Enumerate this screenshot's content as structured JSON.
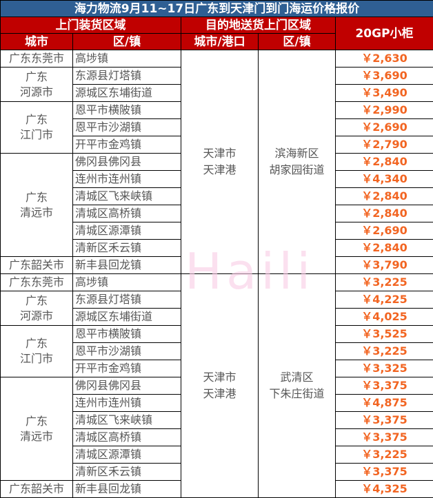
{
  "title": "海力物流9月11~17日广东到天津门到门海运价格报价",
  "headers": {
    "pickup": "上门装货区域",
    "dest": "目的地送货上门区域",
    "price": "20GP小柜",
    "city": "城市",
    "town": "区/镇",
    "dest_city": "城市/港口",
    "dest_town": "区/镇"
  },
  "watermark": "Haili",
  "colors": {
    "title_bg": "#2f5f93",
    "header_bg": "#c00000",
    "price": "#f26522"
  },
  "groups": [
    {
      "dest_city": "天津市\n天津港",
      "dest_town": "滨海新区\n胡家园街道",
      "cities": [
        {
          "city": "广东东莞市",
          "rows": [
            {
              "town": "高埗镇",
              "price": "￥2,630"
            }
          ]
        },
        {
          "city": "广东\n河源市",
          "rows": [
            {
              "town": "东源县灯塔镇",
              "price": "￥3,690"
            },
            {
              "town": "源城区东埔街道",
              "price": "￥3,490"
            }
          ]
        },
        {
          "city": "广东\n江门市",
          "rows": [
            {
              "town": "恩平市横陂镇",
              "price": "￥2,990"
            },
            {
              "town": "恩平市沙湖镇",
              "price": "￥2,690"
            },
            {
              "town": "开平市金鸡镇",
              "price": "￥2,790"
            }
          ]
        },
        {
          "city": "广东\n清远市",
          "rows": [
            {
              "town": "佛冈县佛冈县",
              "price": "￥2,840"
            },
            {
              "town": "连州市连州镇",
              "price": "￥4,340"
            },
            {
              "town": "清城区飞来峡镇",
              "price": "￥2,840"
            },
            {
              "town": "清城区高桥镇",
              "price": "￥2,840"
            },
            {
              "town": "清城区源潭镇",
              "price": "￥2,690"
            },
            {
              "town": "清新区禾云镇",
              "price": "￥2,840"
            }
          ]
        },
        {
          "city": "广东韶关市",
          "rows": [
            {
              "town": "新丰县回龙镇",
              "price": "￥3,790"
            }
          ]
        }
      ]
    },
    {
      "dest_city": "天津市\n天津港",
      "dest_town": "武清区\n下朱庄街道",
      "cities": [
        {
          "city": "广东东莞市",
          "rows": [
            {
              "town": "高埗镇",
              "price": "￥3,225"
            }
          ]
        },
        {
          "city": "广东\n河源市",
          "rows": [
            {
              "town": "东源县灯塔镇",
              "price": "￥4,225"
            },
            {
              "town": "源城区东埔街道",
              "price": "￥4,025"
            }
          ]
        },
        {
          "city": "广东\n江门市",
          "rows": [
            {
              "town": "恩平市横陂镇",
              "price": "￥3,525"
            },
            {
              "town": "恩平市沙湖镇",
              "price": "￥3,225"
            },
            {
              "town": "开平市金鸡镇",
              "price": "￥3,325"
            }
          ]
        },
        {
          "city": "广东\n清远市",
          "rows": [
            {
              "town": "佛冈县佛冈县",
              "price": "￥3,375"
            },
            {
              "town": "连州市连州镇",
              "price": "￥4,875"
            },
            {
              "town": "清城区飞来峡镇",
              "price": "￥3,375"
            },
            {
              "town": "清城区高桥镇",
              "price": "￥3,375"
            },
            {
              "town": "清城区源潭镇",
              "price": "￥3,225"
            },
            {
              "town": "清新区禾云镇",
              "price": "￥3,375"
            }
          ]
        },
        {
          "city": "广东韶关市",
          "rows": [
            {
              "town": "新丰县回龙镇",
              "price": "￥4,325"
            }
          ]
        }
      ]
    }
  ]
}
